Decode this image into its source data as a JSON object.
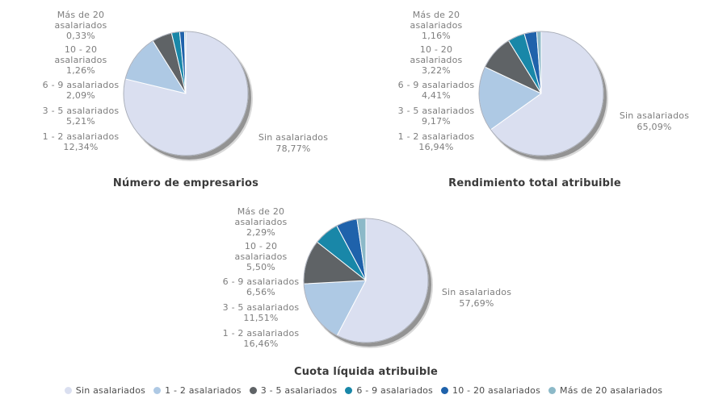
{
  "categories": [
    "Sin asalariados",
    "1 - 2 asalariados",
    "3 - 5 asalariados",
    "6 - 9 asalariados",
    "10 - 20 asalariados",
    "Más de 20 asalariados"
  ],
  "colors": [
    "#dadff0",
    "#aec9e4",
    "#5f6366",
    "#1987a8",
    "#1f62ab",
    "#8cb9c8"
  ],
  "shadow_color": "#939393",
  "outline_color": "#a9aeba",
  "chart_data": [
    {
      "type": "pie",
      "title": "Número de empresarios",
      "labels": [
        "Sin asalariados",
        "1 - 2 asalariados",
        "3 - 5 asalariados",
        "6 - 9 asalariados",
        "10 - 20 asalariados",
        "Más de 20 asalariados"
      ],
      "values": [
        78.77,
        12.34,
        5.21,
        2.09,
        1.26,
        0.33
      ],
      "left_labels": [
        {
          "l1": "Más de 20",
          "l2": "asalariados",
          "pct": "0,33%"
        },
        {
          "l1": "10 - 20",
          "l2": "asalariados",
          "pct": "1,26%"
        },
        {
          "l1": "6 - 9 asalariados",
          "pct": "2,09%"
        },
        {
          "l1": "3 - 5 asalariados",
          "pct": "5,21%"
        },
        {
          "l1": "1 - 2 asalariados",
          "pct": "12,34%"
        }
      ],
      "side_label": {
        "name": "Sin asalariados",
        "pct": "78,77%"
      }
    },
    {
      "type": "pie",
      "title": "Rendimiento total atribuible",
      "labels": [
        "Sin asalariados",
        "1 - 2 asalariados",
        "3 - 5 asalariados",
        "6 - 9 asalariados",
        "10 - 20 asalariados",
        "Más de 20 asalariados"
      ],
      "values": [
        65.09,
        16.94,
        9.17,
        4.41,
        3.22,
        1.16
      ],
      "left_labels": [
        {
          "l1": "Más de 20",
          "l2": "asalariados",
          "pct": "1,16%"
        },
        {
          "l1": "10 - 20",
          "l2": "asalariados",
          "pct": "3,22%"
        },
        {
          "l1": "6 - 9 asalariados",
          "pct": "4,41%"
        },
        {
          "l1": "3 - 5 asalariados",
          "pct": "9,17%"
        },
        {
          "l1": "1 - 2 asalariados",
          "pct": "16,94%"
        }
      ],
      "side_label": {
        "name": "Sin asalariados",
        "pct": "65,09%"
      }
    },
    {
      "type": "pie",
      "title": "Cuota líquida atribuible",
      "labels": [
        "Sin asalariados",
        "1 - 2 asalariados",
        "3 - 5 asalariados",
        "6 - 9 asalariados",
        "10 - 20 asalariados",
        "Más de 20 asalariados"
      ],
      "values": [
        57.69,
        16.46,
        11.51,
        6.56,
        5.5,
        2.29
      ],
      "left_labels": [
        {
          "l1": "Más de 20",
          "l2": "asalariados",
          "pct": "2,29%"
        },
        {
          "l1": "10 - 20",
          "l2": "asalariados",
          "pct": "5,50%"
        },
        {
          "l1": "6 - 9 asalariados",
          "pct": "6,56%"
        },
        {
          "l1": "3 - 5 asalariados",
          "pct": "11,51%"
        },
        {
          "l1": "1 - 2 asalariados",
          "pct": "16,46%"
        }
      ],
      "side_label": {
        "name": "Sin asalariados",
        "pct": "57,69%"
      }
    }
  ]
}
